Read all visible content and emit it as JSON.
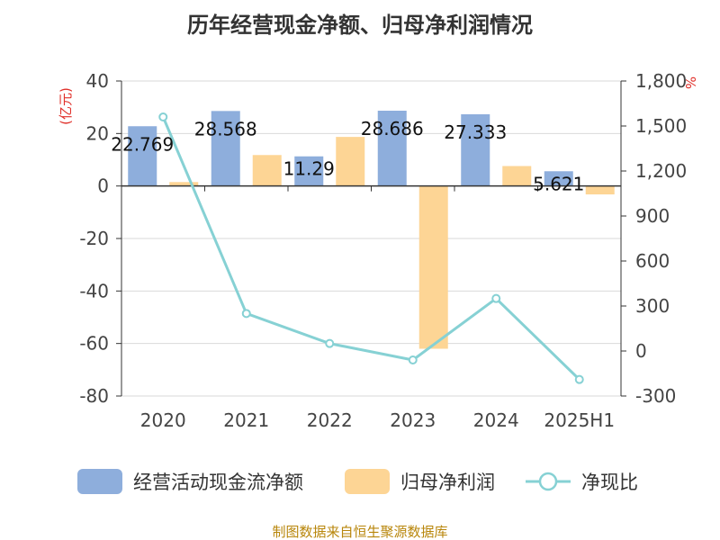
{
  "chart_data": {
    "type": "bar",
    "title": "历年经营现金净额、归母净利润情况",
    "categories": [
      "2020",
      "2021",
      "2022",
      "2023",
      "2024",
      "2025H1"
    ],
    "y_left": {
      "unit": "(亿元)",
      "ylim": [
        -80,
        40
      ],
      "ticks": [
        40,
        20,
        0,
        -20,
        -40,
        -60,
        -80
      ]
    },
    "y_right": {
      "unit": "%",
      "ylim": [
        -300,
        1800
      ],
      "ticks": [
        "1,800",
        "1,500",
        "1,200",
        "900",
        "600",
        "300",
        "0",
        "-300"
      ],
      "tick_values": [
        1800,
        1500,
        1200,
        900,
        600,
        300,
        0,
        -300
      ]
    },
    "series": [
      {
        "name": "经营活动现金流净额",
        "type": "bar",
        "axis": "left",
        "color": "#8eaedc",
        "values": [
          22.769,
          28.568,
          11.29,
          28.686,
          27.333,
          5.621
        ],
        "labels": [
          "22.769",
          "28.568",
          "11.29",
          "28.686",
          "27.333",
          "5.621"
        ]
      },
      {
        "name": "归母净利润",
        "type": "bar",
        "axis": "left",
        "color": "#fdd595",
        "values": [
          1.5,
          11.8,
          18.7,
          -62.0,
          7.6,
          -3.2
        ]
      },
      {
        "name": "净现比",
        "type": "line",
        "axis": "right",
        "color": "#86d1d4",
        "values": [
          1560,
          250,
          50,
          -60,
          350,
          -190
        ]
      }
    ],
    "grid": true,
    "legend_position": "bottom"
  },
  "source_text": "制图数据来自恒生聚源数据库"
}
